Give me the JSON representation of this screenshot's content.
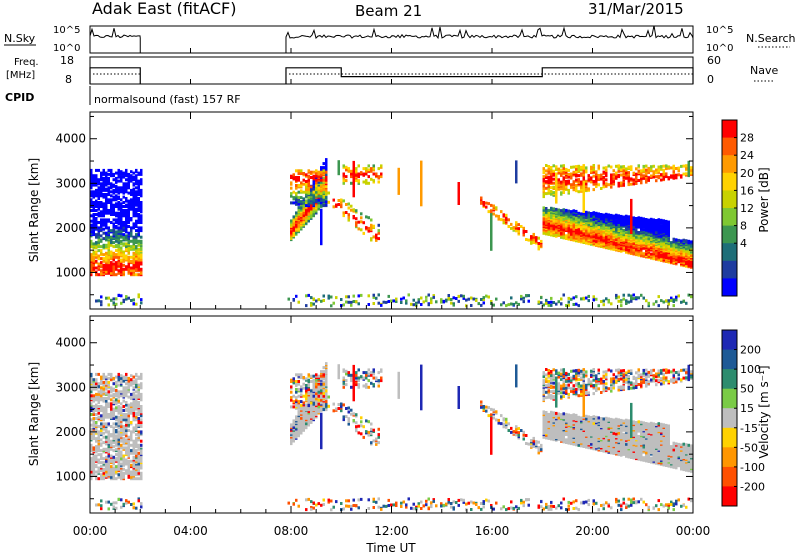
{
  "header": {
    "station": "Adak East (fitACF)",
    "beam": "Beam 21",
    "date": "31/Mar/2015"
  },
  "panels": {
    "nsky_label": "N.Sky",
    "nsearch_label": "N.Search",
    "nsky_ticks": [
      "10^5",
      "10^0"
    ],
    "nsearch_ticks": [
      "10^5",
      "10^0"
    ],
    "freq_label_1": "Freq.",
    "freq_label_2": "[MHz]",
    "freq_ticks": [
      "18",
      "8"
    ],
    "nave_label": "Nave",
    "nave_ticks": [
      "60",
      "0"
    ],
    "cpid_label": "CPID",
    "cpid_text": "normalsound (fast) 157 RF"
  },
  "power_colorbar": {
    "label": "Power [dB]",
    "ticks": [
      "28",
      "24",
      "20",
      "16",
      "12",
      "8",
      "4"
    ],
    "colors": [
      "#ff0000",
      "#ff5a00",
      "#ff9a00",
      "#ffd200",
      "#c8d200",
      "#7fc832",
      "#3c9650",
      "#1e6e78",
      "#1e3ca0",
      "#0000ff"
    ]
  },
  "velocity_colorbar": {
    "label": "Velocity [m s⁻¹]",
    "ticks": [
      "200",
      "100",
      "50",
      "15",
      "-15",
      "-50",
      "-100",
      "-200"
    ],
    "colors": [
      "#1e28b4",
      "#1e5a96",
      "#2d8c6e",
      "#7acb46",
      "#bebebe",
      "#ffd200",
      "#ff9600",
      "#ff5000",
      "#ff0000"
    ]
  },
  "chart_data": {
    "type": "heatmap",
    "xlabel": "Time UT",
    "ylabel": "Slant Range [km]",
    "x_ticks": [
      "00:00",
      "04:00",
      "08:00",
      "12:00",
      "16:00",
      "20:00",
      "00:00"
    ],
    "x_range_hours": [
      0,
      24
    ],
    "y_ticks": [
      1000,
      2000,
      3000,
      4000
    ],
    "y_range_km": [
      180,
      4600
    ],
    "data_intervals_hours": [
      [
        0,
        2
      ],
      [
        7.8,
        24
      ]
    ],
    "frequency_mhz": {
      "segments": [
        {
          "start": 0,
          "end": 2,
          "value": 14
        },
        {
          "start": 7.8,
          "end": 10,
          "value": 14
        },
        {
          "start": 10,
          "end": 18,
          "value": 10
        },
        {
          "start": 18,
          "end": 24,
          "value": 14
        }
      ]
    },
    "power_range_db": [
      0,
      32
    ],
    "velocity_range_ms": [
      -250,
      250
    ]
  }
}
